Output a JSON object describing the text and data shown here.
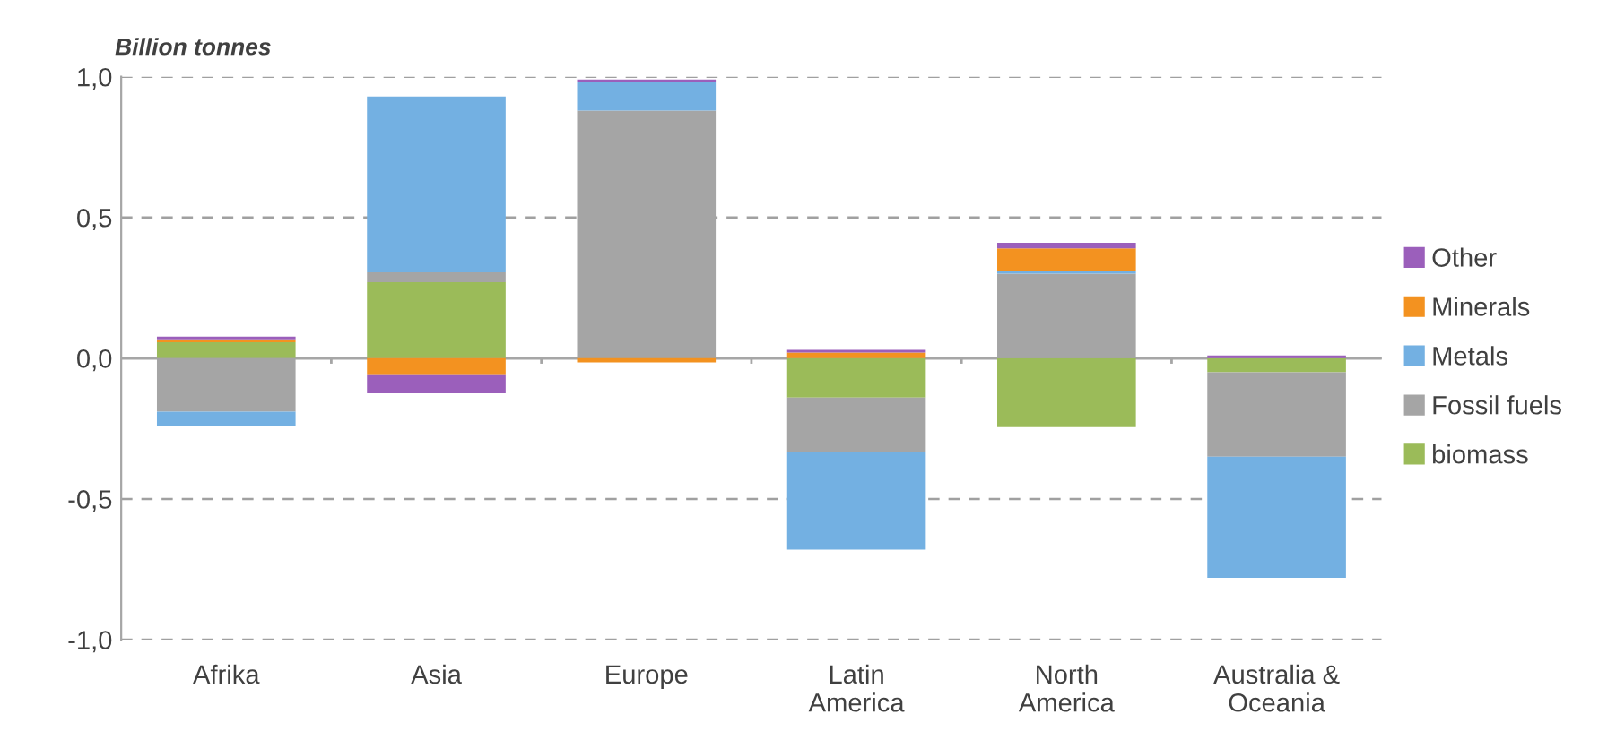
{
  "chart_data": {
    "type": "bar",
    "stacked": true,
    "ylabel": "Billion tonnes",
    "categories": [
      "Afrika",
      "Asia",
      "Europe",
      "Latin\nAmerica",
      "North\nAmerica",
      "Australia &\nOceania"
    ],
    "series": [
      {
        "name": "biomass",
        "color": "#9bbb59",
        "values": [
          0.057,
          0.27,
          null,
          -0.14,
          -0.245,
          -0.05
        ]
      },
      {
        "name": "Fossil fuels",
        "color": "#a5a5a5",
        "values": [
          -0.19,
          0.035,
          0.88,
          -0.195,
          0.3,
          -0.3
        ]
      },
      {
        "name": "Metals",
        "color": "#73b0e2",
        "values": [
          -0.05,
          0.625,
          0.1,
          -0.345,
          0.01,
          -0.43
        ]
      },
      {
        "name": "Minerals",
        "color": "#f39220",
        "values": [
          0.01,
          -0.06,
          -0.015,
          0.02,
          0.08,
          null
        ]
      },
      {
        "name": "Other",
        "color": "#9b5fbb",
        "values": [
          0.01,
          -0.065,
          0.01,
          0.01,
          0.02,
          0.01
        ]
      }
    ],
    "ylim": [
      -1.0,
      1.0
    ],
    "yticks": [
      {
        "value": -1.0,
        "label": "-1,0"
      },
      {
        "value": -0.5,
        "label": "-0,5"
      },
      {
        "value": 0.0,
        "label": "0,0"
      },
      {
        "value": 0.5,
        "label": "0,5"
      },
      {
        "value": 1.0,
        "label": "1,0"
      }
    ],
    "grid": "y",
    "legend": "right"
  }
}
